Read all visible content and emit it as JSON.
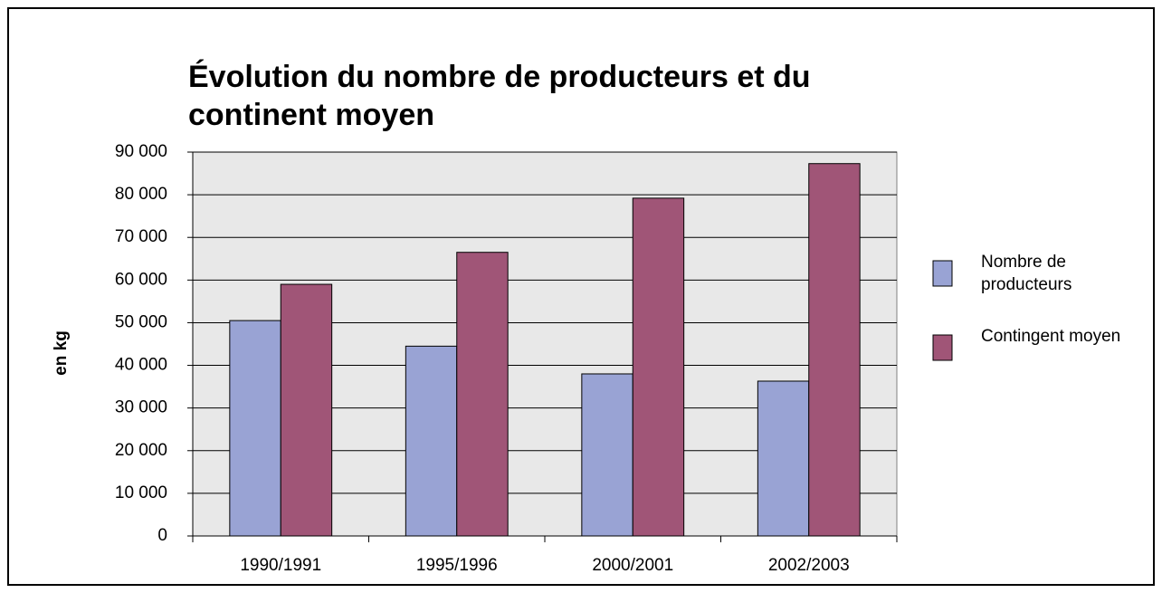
{
  "chart_data": {
    "type": "bar",
    "title": "Évolution du nombre de producteurs et du continent moyen",
    "ylabel": "en kg",
    "categories": [
      "1990/1991",
      "1995/1996",
      "2000/2001",
      "2002/2003"
    ],
    "series": [
      {
        "name": "Nombre de producteurs",
        "color": "#99a3d4",
        "values": [
          50500,
          44500,
          38000,
          36300
        ]
      },
      {
        "name": "Contingent moyen",
        "color": "#a05577",
        "values": [
          59000,
          66500,
          79200,
          87300
        ]
      }
    ],
    "ylim": [
      0,
      90000
    ],
    "yticks": [
      0,
      {
        "value": 10000,
        "label": "10 000"
      },
      {
        "value": 20000,
        "label": "20 000"
      },
      {
        "value": 30000,
        "label": "30 000"
      },
      {
        "value": 40000,
        "label": "40 000"
      },
      {
        "value": 50000,
        "label": "50 000"
      },
      {
        "value": 60000,
        "label": "60 000"
      },
      {
        "value": 70000,
        "label": "70 000"
      },
      {
        "value": 80000,
        "label": "80 000"
      },
      {
        "value": 90000,
        "label": "90 000"
      }
    ],
    "grid": true,
    "legend": "right"
  }
}
